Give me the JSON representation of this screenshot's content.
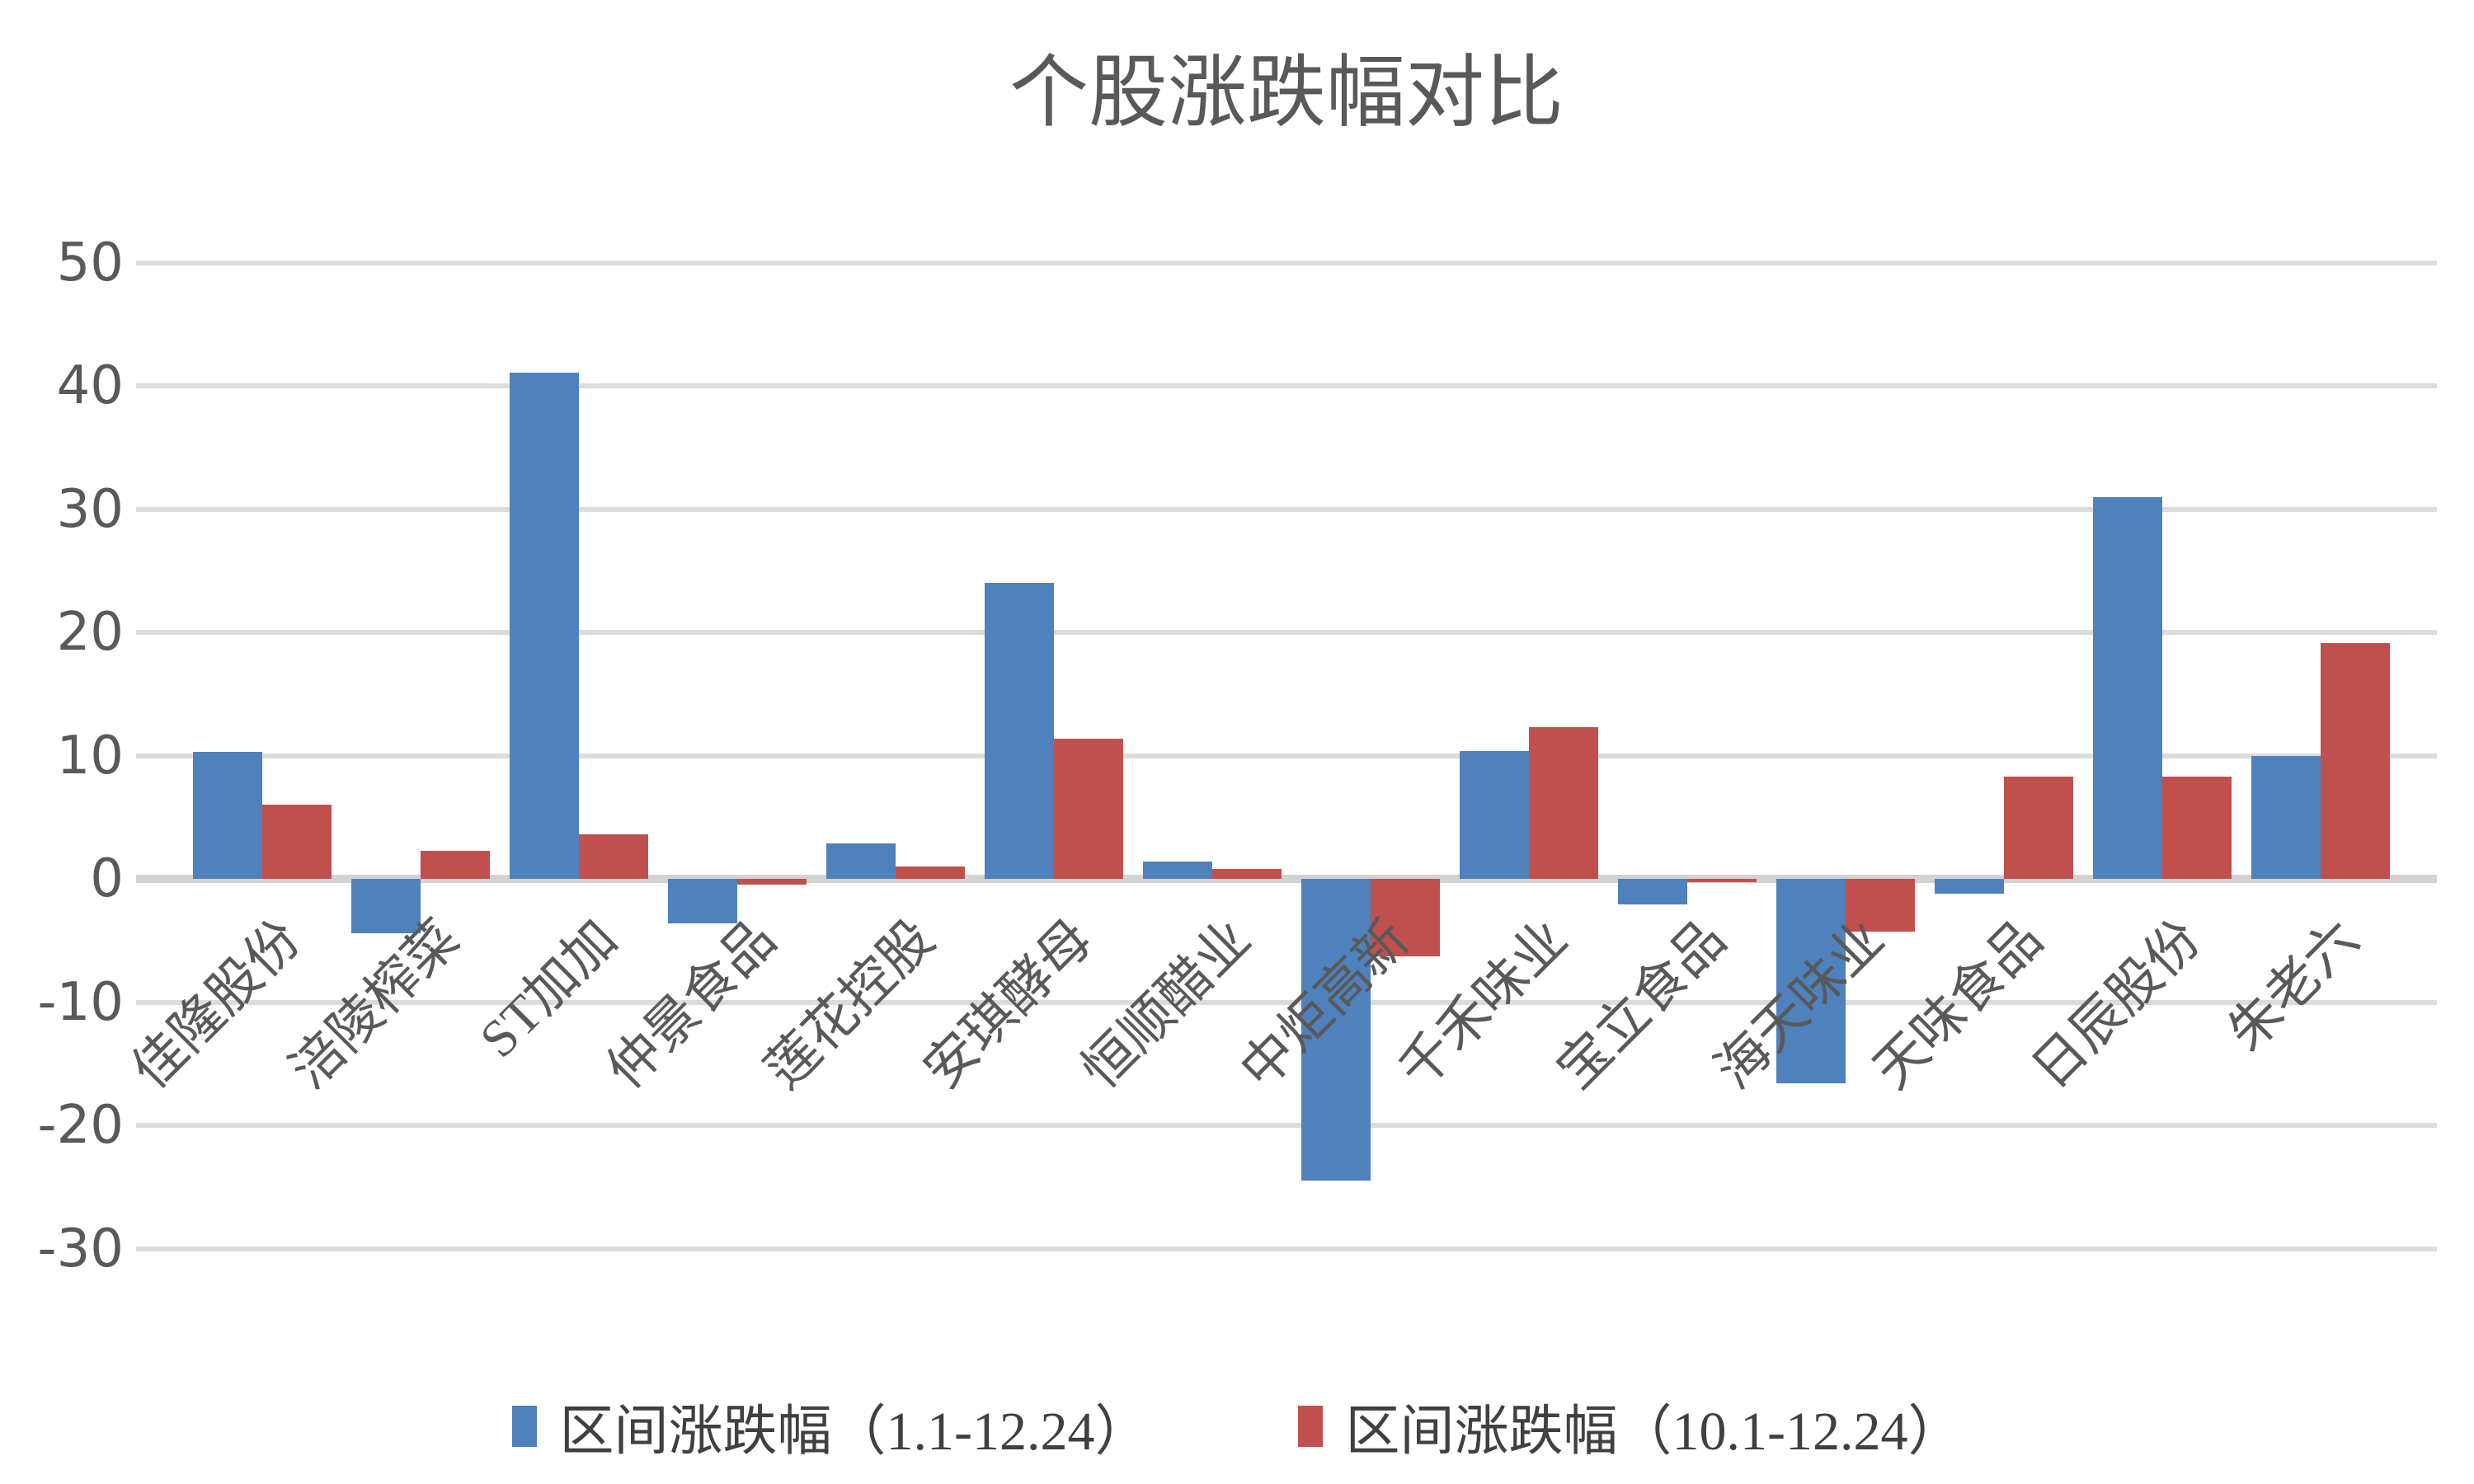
{
  "chart_data": {
    "type": "bar",
    "title": "个股涨跌幅对比",
    "categories": [
      "佳隆股份",
      "涪陵榨菜",
      "ST加加",
      "仲景食品",
      "莲花控股",
      "安琪酵母",
      "恒顺醋业",
      "中炬高新",
      "千禾味业",
      "宝立食品",
      "海天味业",
      "天味食品",
      "日辰股份",
      "朱老六"
    ],
    "series": [
      {
        "name": "区间涨跌幅（1.1-12.24）",
        "color": "#4F81BD",
        "values": [
          10.3,
          -4.4,
          41.1,
          -3.6,
          2.9,
          24.0,
          1.4,
          -24.5,
          10.4,
          -2.1,
          -16.6,
          -1.2,
          31.0,
          10.0
        ]
      },
      {
        "name": "区间涨跌幅（10.1-12.24）",
        "color": "#C0504D",
        "values": [
          6.0,
          2.3,
          3.6,
          -0.5,
          1.0,
          11.4,
          0.8,
          -6.3,
          12.3,
          -0.3,
          -4.3,
          8.3,
          8.3,
          19.1
        ]
      }
    ],
    "ylim": [
      -30,
      50
    ],
    "ytick_values": [
      50,
      40,
      30,
      20,
      10,
      0,
      -10,
      -20,
      -30
    ],
    "xlabel": "",
    "ylabel": "",
    "grid": true,
    "legend_position": "bottom",
    "colors": {
      "gridline": "#DCDCDC",
      "zero_line": "#D2D2D2",
      "axis_text": "#595959",
      "title_text": "#595959",
      "legend_text": "#404040",
      "background": "#FFFFFF"
    }
  }
}
